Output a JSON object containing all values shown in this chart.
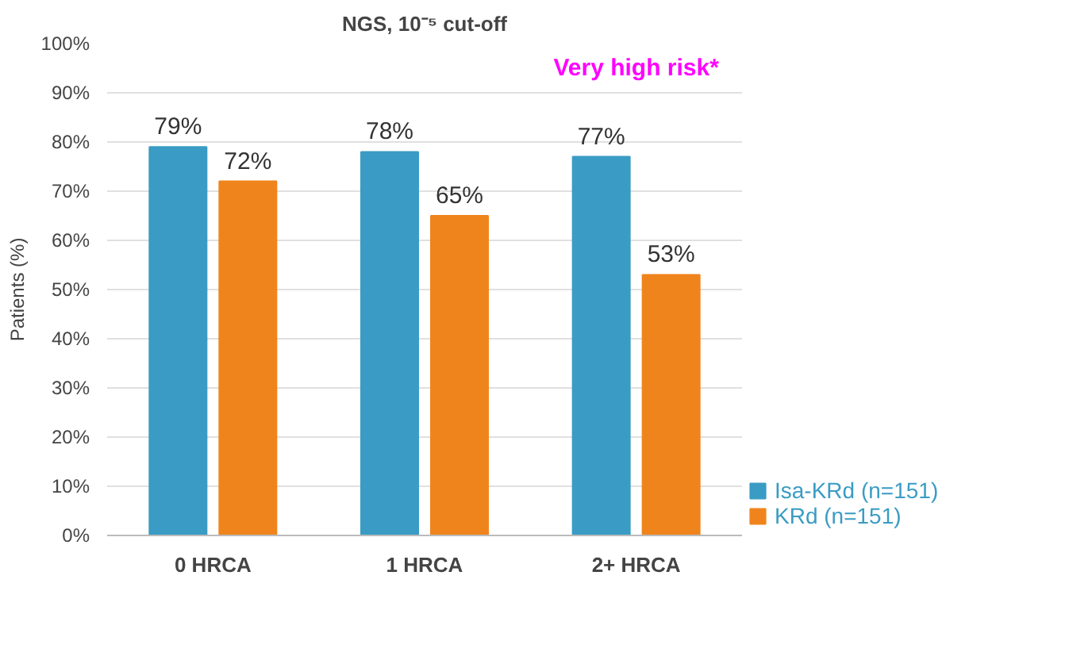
{
  "chart_data": {
    "type": "bar",
    "title": "NGS, 10⁻⁵ cut-off",
    "ylabel": "Patients (%)",
    "categories": [
      "0 HRCA",
      "1 HRCA",
      "2+ HRCA"
    ],
    "series": [
      {
        "name": "Isa-KRd (n=151)",
        "color": "#3a9cc4",
        "values": [
          79,
          78,
          77
        ]
      },
      {
        "name": "KRd (n=151)",
        "color": "#f0841c",
        "values": [
          72,
          65,
          53
        ]
      }
    ],
    "ylim": [
      0,
      100
    ],
    "yticks": [
      {
        "value": 0,
        "label": "0%"
      },
      {
        "value": 10,
        "label": "10%"
      },
      {
        "value": 20,
        "label": "20%"
      },
      {
        "value": 30,
        "label": "30%"
      },
      {
        "value": 40,
        "label": "40%"
      },
      {
        "value": 50,
        "label": "50%"
      },
      {
        "value": 60,
        "label": "60%"
      },
      {
        "value": 70,
        "label": "70%"
      },
      {
        "value": 80,
        "label": "80%"
      },
      {
        "value": 90,
        "label": "90%"
      },
      {
        "value": 100,
        "label": "100%"
      }
    ],
    "value_labels": [
      [
        "79%",
        "78%",
        "77%"
      ],
      [
        "72%",
        "65%",
        "53%"
      ]
    ],
    "annotations": [
      "Very high risk*"
    ],
    "grid": "y",
    "legend": "bottom right"
  }
}
